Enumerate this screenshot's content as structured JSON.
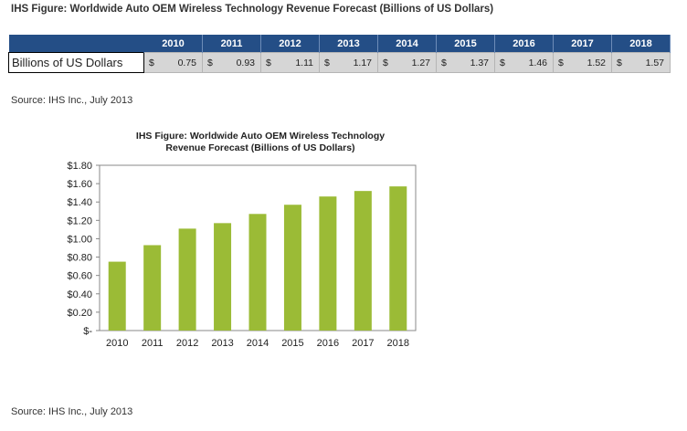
{
  "title": "IHS Figure: Worldwide Auto OEM Wireless Technology Revenue Forecast (Billions of US Dollars)",
  "table": {
    "row_label": "Billions of US Dollars",
    "currency_symbol": "$",
    "years": [
      "2010",
      "2011",
      "2012",
      "2013",
      "2014",
      "2015",
      "2016",
      "2017",
      "2018"
    ],
    "values": [
      "0.75",
      "0.93",
      "1.11",
      "1.17",
      "1.27",
      "1.37",
      "1.46",
      "1.52",
      "1.57"
    ]
  },
  "source_top": "Source: IHS Inc., July 2013",
  "source_bottom": "Source: IHS Inc., July 2013",
  "chart_data": {
    "type": "bar",
    "title_line1": "IHS Figure: Worldwide Auto OEM Wireless Technology",
    "title_line2": "Revenue Forecast (Billions of US Dollars)",
    "categories": [
      "2010",
      "2011",
      "2012",
      "2013",
      "2014",
      "2015",
      "2016",
      "2017",
      "2018"
    ],
    "values": [
      0.75,
      0.93,
      1.11,
      1.17,
      1.27,
      1.37,
      1.46,
      1.52,
      1.57
    ],
    "ylim": [
      0,
      1.8
    ],
    "yticks": [
      0,
      0.2,
      0.4,
      0.6,
      0.8,
      1.0,
      1.2,
      1.4,
      1.6,
      1.8
    ],
    "ytick_labels": [
      "$-",
      "$0.20",
      "$0.40",
      "$0.60",
      "$0.80",
      "$1.00",
      "$1.20",
      "$1.40",
      "$1.60",
      "$1.80"
    ],
    "xlabel": "",
    "ylabel": "",
    "bar_color": "#9bbb36",
    "grid": false,
    "legend": "none"
  }
}
